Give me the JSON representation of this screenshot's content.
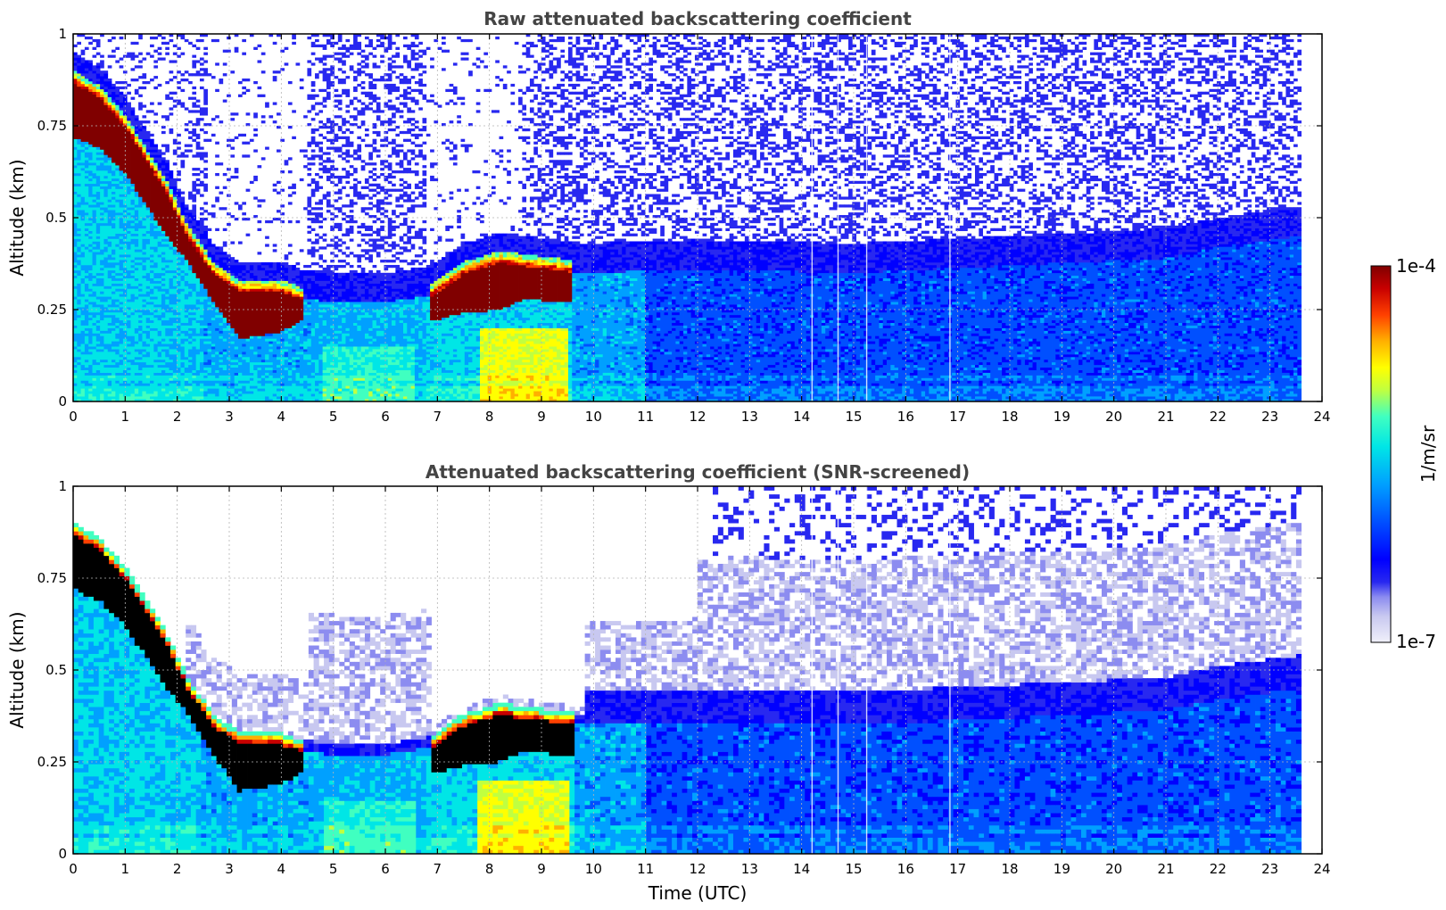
{
  "chart_data": [
    {
      "type": "heatmap",
      "title": "Raw attenuated backscattering coefficient",
      "xlabel": "",
      "ylabel": "Altitude (km)",
      "xlim": [
        0,
        24
      ],
      "ylim": [
        0,
        1
      ],
      "xticks": [
        "0",
        "1",
        "2",
        "3",
        "4",
        "5",
        "6",
        "7",
        "8",
        "9",
        "10",
        "11",
        "12",
        "13",
        "14",
        "15",
        "16",
        "17",
        "18",
        "19",
        "20",
        "21",
        "22",
        "23",
        "24"
      ],
      "yticks": [
        "0",
        "0.25",
        "0.5",
        "0.75",
        "1"
      ],
      "data_end_hour": 23.6,
      "screened": false,
      "layer_top_km": [
        [
          0,
          0.9
        ],
        [
          0.5,
          0.86
        ],
        [
          1,
          0.78
        ],
        [
          1.8,
          0.6
        ],
        [
          2.2,
          0.48
        ],
        [
          2.7,
          0.38
        ],
        [
          3.2,
          0.33
        ],
        [
          4,
          0.33
        ],
        [
          4.4,
          0.31
        ],
        [
          5,
          0.3
        ],
        [
          6,
          0.3
        ],
        [
          6.9,
          0.32
        ],
        [
          7.5,
          0.38
        ],
        [
          8.2,
          0.41
        ],
        [
          8.7,
          0.4
        ],
        [
          9.3,
          0.39
        ],
        [
          9.8,
          0.38
        ],
        [
          12,
          0.39
        ],
        [
          15,
          0.38
        ],
        [
          18,
          0.4
        ],
        [
          21,
          0.42
        ],
        [
          22,
          0.45
        ],
        [
          23.6,
          0.48
        ]
      ],
      "cloud_base_km": [
        [
          0,
          0.72
        ],
        [
          0.5,
          0.69
        ],
        [
          1,
          0.62
        ],
        [
          1.8,
          0.45
        ],
        [
          2.2,
          0.38
        ],
        [
          2.7,
          0.27
        ],
        [
          3.2,
          0.17
        ],
        [
          4,
          0.19
        ],
        [
          4.4,
          0.22
        ],
        [
          6.9,
          0.22
        ],
        [
          7.5,
          0.24
        ],
        [
          8.2,
          0.25
        ],
        [
          8.7,
          0.28
        ],
        [
          9.3,
          0.27
        ],
        [
          9.6,
          0.27
        ]
      ],
      "colorbar": {
        "label": "1/m/sr",
        "min_label": "1e-7",
        "max_label": "1e-4",
        "scale": "log"
      }
    },
    {
      "type": "heatmap",
      "title": "Attenuated backscattering coefficient (SNR-screened)",
      "xlabel": "Time (UTC)",
      "ylabel": "Altitude (km)",
      "xlim": [
        0,
        24
      ],
      "ylim": [
        0,
        1
      ],
      "xticks": [
        "0",
        "1",
        "2",
        "3",
        "4",
        "5",
        "6",
        "7",
        "8",
        "9",
        "10",
        "11",
        "12",
        "13",
        "14",
        "15",
        "16",
        "17",
        "18",
        "19",
        "20",
        "21",
        "22",
        "23",
        "24"
      ],
      "yticks": [
        "0",
        "0.25",
        "0.5",
        "0.75",
        "1"
      ],
      "data_end_hour": 23.6,
      "screened": true
    }
  ],
  "colors": {
    "title": "#444444",
    "cmap": [
      "#f0f0fa",
      "#c8c8f0",
      "#8c8cf0",
      "#2828f0",
      "#0000ff",
      "#0050ff",
      "#00a0ff",
      "#00e6e6",
      "#40ffc0",
      "#c0ff40",
      "#ffff00",
      "#ffb000",
      "#ff4000",
      "#c80000",
      "#800000"
    ],
    "saturated_screened": "#000000"
  }
}
